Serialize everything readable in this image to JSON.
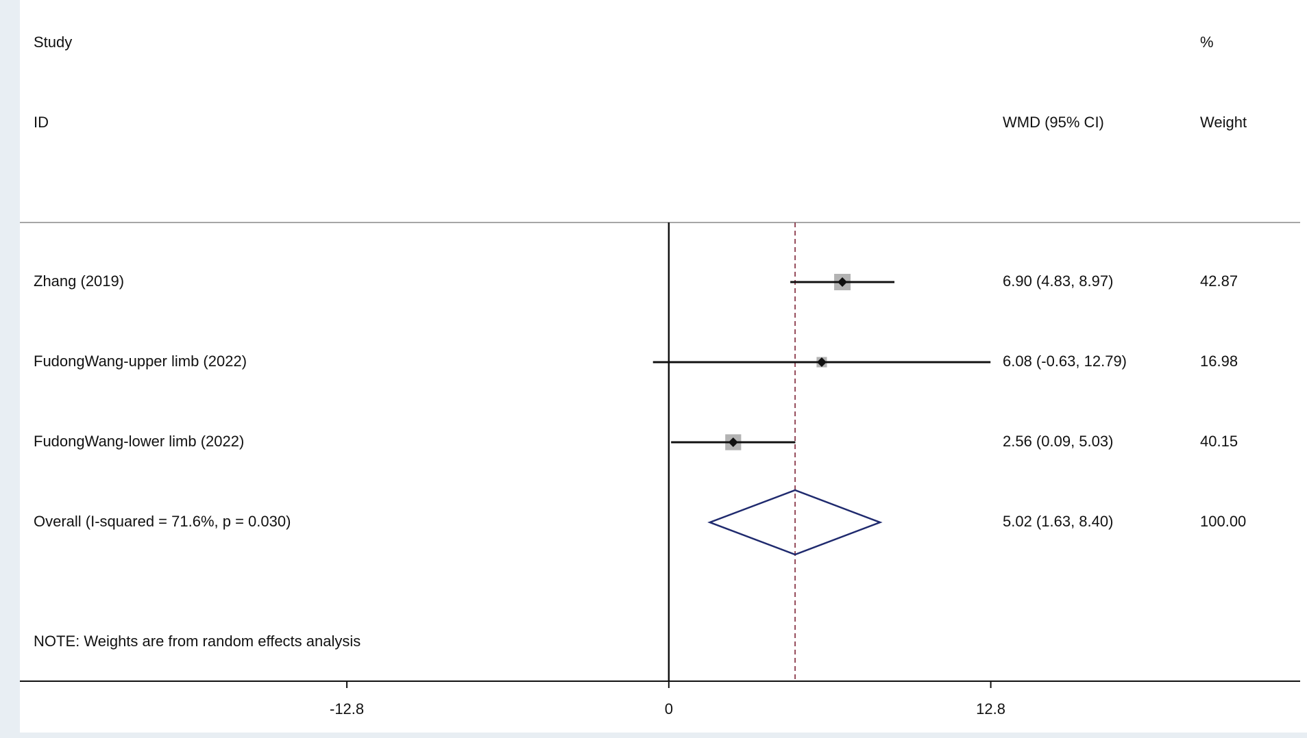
{
  "chart_data": {
    "type": "forest",
    "headers": {
      "study": "Study",
      "id": "ID",
      "effect": "WMD (95% CI)",
      "percent": "%",
      "weight": "Weight"
    },
    "studies": [
      {
        "name": "Zhang (2019)",
        "estimate": 6.9,
        "lower": 4.83,
        "upper": 8.97,
        "label": "6.90 (4.83, 8.97)",
        "weight": 42.87
      },
      {
        "name": "FudongWang-upper limb  (2022)",
        "estimate": 6.08,
        "lower": -0.63,
        "upper": 12.79,
        "label": "6.08 (-0.63, 12.79)",
        "weight": 16.98
      },
      {
        "name": "FudongWang-lower limb (2022)",
        "estimate": 2.56,
        "lower": 0.09,
        "upper": 5.03,
        "label": "2.56 (0.09, 5.03)",
        "weight": 40.15
      }
    ],
    "overall": {
      "name": "Overall  (I-squared = 71.6%, p = 0.030)",
      "estimate": 5.02,
      "lower": 1.63,
      "upper": 8.4,
      "label": "5.02 (1.63, 8.40)",
      "weight": 100,
      "weight_label": "100.00"
    },
    "note": "NOTE: Weights are from random effects analysis",
    "xlim": [
      -25.8,
      25.1
    ],
    "xticks": [
      -12.8,
      0,
      12.8
    ],
    "box_color": "#b3b3b3",
    "diamond_color": "#1f2a6e",
    "reference_color": "#8b3a4a"
  }
}
